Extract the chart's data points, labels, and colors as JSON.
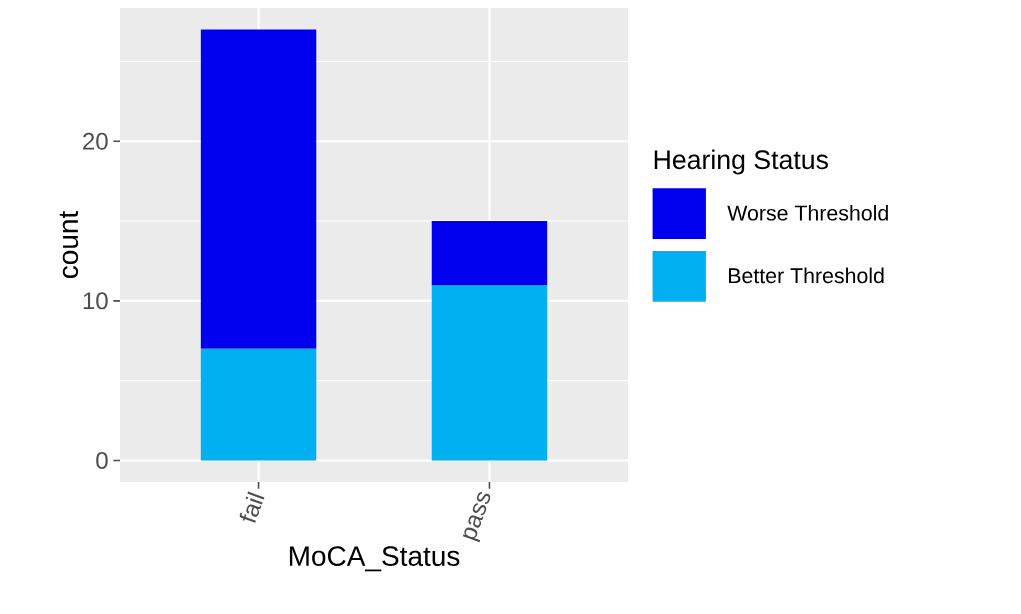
{
  "chart_data": {
    "type": "bar",
    "stacked": true,
    "xlabel": "MoCA_Status",
    "ylabel": "count",
    "legend_title": "Hearing Status",
    "categories": [
      "fail",
      "pass"
    ],
    "series": [
      {
        "name": "Better Threshold",
        "color": "#00b0f0",
        "values": [
          7,
          11
        ]
      },
      {
        "name": "Worse Threshold",
        "color": "#0000ee",
        "values": [
          20,
          4
        ]
      }
    ],
    "ylim": [
      -1.35,
      28.35
    ],
    "yticks": [
      0,
      {
        "value": 5,
        "label": null
      },
      10,
      {
        "value": 15,
        "label": null
      },
      20,
      {
        "value": 25,
        "label": null
      }
    ],
    "grid": true,
    "legend": "right"
  }
}
